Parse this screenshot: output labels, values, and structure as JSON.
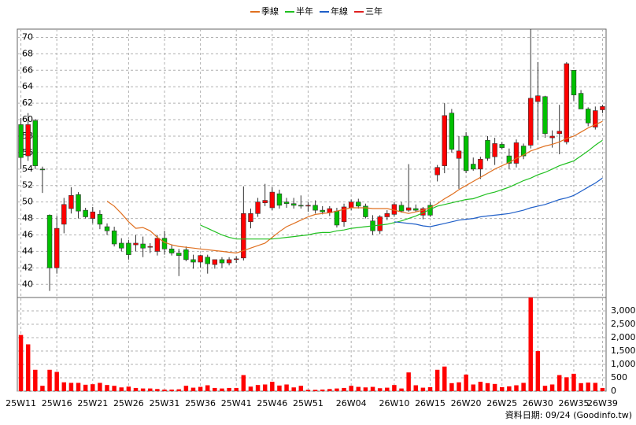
{
  "chart_data": {
    "type": "candlestick",
    "categories": [
      "25W11",
      null,
      null,
      null,
      null,
      "25W16",
      null,
      null,
      null,
      null,
      "25W21",
      null,
      null,
      null,
      null,
      "25W26",
      null,
      null,
      null,
      null,
      "25W31",
      null,
      null,
      null,
      null,
      "25W36",
      null,
      null,
      null,
      null,
      "25W41",
      null,
      null,
      null,
      null,
      "25W46",
      null,
      null,
      null,
      null,
      "25W51",
      null,
      null,
      null,
      null,
      null,
      "26W04",
      null,
      null,
      null,
      null,
      null,
      "26W10",
      null,
      null,
      null,
      null,
      "26W15",
      null,
      null,
      null,
      null,
      "26W20",
      null,
      null,
      null,
      null,
      "26W25",
      null,
      null,
      null,
      null,
      "26W30",
      null,
      null,
      null,
      null,
      "26W35",
      null,
      null,
      null,
      "26W39"
    ],
    "open": [
      59.4,
      55.6,
      59.9,
      54,
      48.4,
      42,
      47.3,
      49.2,
      50.9,
      49,
      48,
      48.5,
      47,
      46.5,
      45,
      45,
      44.8,
      44.9,
      44.5,
      44,
      45.6,
      44.3,
      43.8,
      44.2,
      43,
      42.7,
      43.3,
      42.4,
      43,
      42.6,
      43,
      43.2,
      47.6,
      48.6,
      49.9,
      49.3,
      51,
      50,
      49.8,
      49.6,
      49.5,
      49.6,
      49,
      48.7,
      48.9,
      47.6,
      49.3,
      50,
      49.5,
      47.7,
      46.5,
      48.2,
      48.5,
      49.6,
      49,
      49.2,
      48.4,
      49.6,
      53.3,
      54.4,
      60.8,
      55.3,
      58,
      54.6,
      54,
      57.5,
      55.5,
      57,
      55.6,
      54.7,
      56.8,
      56.9,
      62.2,
      62.8,
      57.8,
      58.3,
      57.3,
      66,
      63.2,
      61.3,
      59.1,
      61.2
    ],
    "high": [
      60.2,
      60.8,
      60.1,
      54.3,
      48.5,
      48.3,
      50.5,
      51.8,
      51.2,
      49.3,
      49.4,
      49,
      47.4,
      47,
      45.6,
      45.4,
      46,
      45.8,
      45,
      46,
      46.5,
      44.8,
      44.3,
      44.6,
      43.6,
      43.6,
      43.6,
      43,
      43.3,
      43.3,
      43.4,
      51.9,
      49.2,
      50.5,
      52.2,
      51.8,
      51.5,
      50.5,
      50.5,
      50.8,
      50,
      50.2,
      49.5,
      49.5,
      49.3,
      49.8,
      50.3,
      50.4,
      49.8,
      48.4,
      48.4,
      49,
      50,
      50,
      54.6,
      49.7,
      49.4,
      50,
      54.5,
      62,
      61.3,
      58,
      58.5,
      55.4,
      55.5,
      58,
      57.8,
      57.3,
      56.5,
      57.6,
      57.1,
      71,
      67,
      62.9,
      58.7,
      61.8,
      67,
      66,
      63.6,
      61.5,
      61.6,
      61.8
    ],
    "low": [
      54,
      55,
      54,
      51.1,
      39.2,
      41.3,
      46.2,
      48.6,
      48,
      48,
      47.4,
      46.7,
      46,
      44.6,
      44,
      43,
      44,
      43.3,
      43.8,
      43.5,
      43.6,
      43.5,
      41,
      42.8,
      41.9,
      42,
      41.3,
      41.9,
      42,
      42.3,
      42.6,
      42.9,
      46.8,
      48.2,
      49.5,
      49,
      49.2,
      49.3,
      49.2,
      49.2,
      48.8,
      48.6,
      48.5,
      48.3,
      46.9,
      47,
      49,
      49.2,
      48,
      46,
      46.1,
      47.8,
      48.2,
      48.7,
      48.8,
      48.8,
      47.9,
      48.2,
      52.5,
      53.5,
      56,
      51.6,
      53.5,
      53.8,
      52.8,
      55,
      54.5,
      56.4,
      54,
      54.2,
      55.2,
      56.5,
      57.5,
      57.8,
      56.6,
      55.8,
      57,
      62.3,
      61.6,
      59.2,
      58.8,
      60.8
    ],
    "close": [
      55.4,
      59.4,
      54.4,
      53.9,
      42,
      46.8,
      49.7,
      50.8,
      48.9,
      48.2,
      48.8,
      47.3,
      46.5,
      44.9,
      44.4,
      43.6,
      45,
      44.4,
      44.6,
      45.6,
      44.3,
      43.8,
      43.5,
      43,
      42.7,
      43.5,
      42.5,
      43,
      42.6,
      43,
      43.1,
      48.6,
      48.6,
      50,
      50.2,
      51.2,
      49.6,
      49.8,
      49.6,
      49.5,
      49.6,
      49,
      48.8,
      49.2,
      47.2,
      49.4,
      50,
      49.5,
      48.2,
      46.5,
      48.2,
      48.6,
      49.7,
      48.9,
      49.3,
      49,
      49.2,
      48.4,
      54.2,
      60.5,
      56.4,
      56.2,
      53.8,
      54,
      55.2,
      55.3,
      57.1,
      56.6,
      54.7,
      57.2,
      55.6,
      62.6,
      62.9,
      58.3,
      58,
      58.6,
      66.8,
      63,
      61.3,
      59.6,
      61.1,
      61.6
    ],
    "up_color": "#ff0000",
    "down_color": "#00c000",
    "ylim": [
      38.4,
      71
    ],
    "yticks": [
      40,
      42,
      44,
      46,
      48,
      50,
      52,
      54,
      56,
      58,
      60,
      62,
      64,
      66,
      68,
      70
    ],
    "grid": true,
    "series": [
      {
        "name": "季線",
        "color": "#e07020",
        "values": [
          null,
          null,
          null,
          null,
          null,
          null,
          null,
          null,
          null,
          null,
          null,
          null,
          50.1,
          49.5,
          48.6,
          47.6,
          46.8,
          46.9,
          46.5,
          45.7,
          45.1,
          44.8,
          44.6,
          44.5,
          44.4,
          44.3,
          44.2,
          44.1,
          44.0,
          43.9,
          43.8,
          44.1,
          44.4,
          44.7,
          45.0,
          45.7,
          46.4,
          47.0,
          47.4,
          47.8,
          48.2,
          48.5,
          48.6,
          48.7,
          48.9,
          49.1,
          49.3,
          49.3,
          49.3,
          49.2,
          49.2,
          49.2,
          49.0,
          48.8,
          48.6,
          48.8,
          49.0,
          49.3,
          49.8,
          50.4,
          50.9,
          51.5,
          52.0,
          52.5,
          53.0,
          53.5,
          54.0,
          54.4,
          54.8,
          55.3,
          55.7,
          56.2,
          56.5,
          56.8,
          57.0,
          57.3,
          57.7,
          58.0,
          58.5,
          59.0,
          59.4,
          59.8
        ]
      },
      {
        "name": "半年",
        "color": "#20c020",
        "values": [
          null,
          null,
          null,
          null,
          null,
          null,
          null,
          null,
          null,
          null,
          null,
          null,
          null,
          null,
          null,
          null,
          null,
          null,
          null,
          null,
          null,
          null,
          null,
          null,
          null,
          47.2,
          46.8,
          46.4,
          46.0,
          45.7,
          45.5,
          45.5,
          45.5,
          45.5,
          45.5,
          45.5,
          45.6,
          45.7,
          45.8,
          45.9,
          46.0,
          46.2,
          46.3,
          46.3,
          46.5,
          46.6,
          46.8,
          46.9,
          47.0,
          47.1,
          47.2,
          47.3,
          47.5,
          47.7,
          48.0,
          48.3,
          48.7,
          49.1,
          49.5,
          49.7,
          49.9,
          50.1,
          50.3,
          50.4,
          50.7,
          51.0,
          51.2,
          51.5,
          51.8,
          52.2,
          52.6,
          52.9,
          53.3,
          53.6,
          54.0,
          54.4,
          54.7,
          55.0,
          55.6,
          56.2,
          56.9,
          57.5
        ]
      },
      {
        "name": "年線",
        "color": "#1f5fc8",
        "values": [
          null,
          null,
          null,
          null,
          null,
          null,
          null,
          null,
          null,
          null,
          null,
          null,
          null,
          null,
          null,
          null,
          null,
          null,
          null,
          null,
          null,
          null,
          null,
          null,
          null,
          null,
          null,
          null,
          null,
          null,
          null,
          null,
          null,
          null,
          null,
          null,
          null,
          null,
          null,
          null,
          null,
          null,
          null,
          null,
          null,
          null,
          null,
          null,
          null,
          null,
          null,
          null,
          47.6,
          47.5,
          47.4,
          47.3,
          47.1,
          47.0,
          47.2,
          47.4,
          47.6,
          47.8,
          47.9,
          48.0,
          48.2,
          48.3,
          48.4,
          48.5,
          48.6,
          48.8,
          49.0,
          49.3,
          49.5,
          49.7,
          50.0,
          50.3,
          50.5,
          50.8,
          51.3,
          51.8,
          52.3,
          52.9
        ]
      },
      {
        "name": "三年",
        "color": "#e02020",
        "values": [
          null,
          null,
          null,
          null,
          null,
          null,
          null,
          null,
          null,
          null,
          null,
          null,
          null,
          null,
          null,
          null,
          null,
          null,
          null,
          null,
          null,
          null,
          null,
          null,
          null,
          null,
          null,
          null,
          null,
          null,
          null,
          null,
          null,
          null,
          null,
          null,
          null,
          null,
          null,
          null,
          null,
          null,
          null,
          null,
          null,
          null,
          null,
          null,
          null,
          null,
          null,
          null,
          null,
          null,
          null,
          null,
          null,
          null,
          null,
          null,
          null,
          null,
          null,
          null,
          null,
          null,
          null,
          null,
          null,
          null,
          null,
          null,
          null,
          null,
          null,
          null,
          null,
          null,
          null,
          null,
          null,
          null
        ]
      }
    ],
    "volume": {
      "color": "#ff0000",
      "ylim": [
        0,
        3500
      ],
      "yticks": [
        0,
        500,
        {
          "value": 1000,
          "label": "1,000"
        },
        {
          "value": 1500,
          "label": "1,500"
        },
        {
          "value": 2000,
          "label": "2,000"
        },
        {
          "value": 2500,
          "label": "2,500"
        },
        {
          "value": 3000,
          "label": "3,000"
        }
      ],
      "values": [
        2100,
        1750,
        800,
        200,
        800,
        720,
        330,
        310,
        310,
        240,
        260,
        310,
        230,
        200,
        140,
        170,
        120,
        100,
        100,
        80,
        60,
        60,
        70,
        200,
        130,
        160,
        220,
        120,
        100,
        120,
        120,
        600,
        170,
        230,
        250,
        350,
        210,
        250,
        140,
        200,
        50,
        50,
        60,
        80,
        100,
        120,
        200,
        160,
        140,
        160,
        110,
        130,
        230,
        100,
        700,
        220,
        130,
        150,
        800,
        920,
        300,
        330,
        620,
        250,
        350,
        300,
        270,
        150,
        180,
        220,
        310,
        3500,
        1500,
        200,
        250,
        600,
        520,
        650,
        300,
        320,
        310,
        120
      ]
    },
    "source": "資料日期: 09/24 (Goodinfo.tw)"
  }
}
